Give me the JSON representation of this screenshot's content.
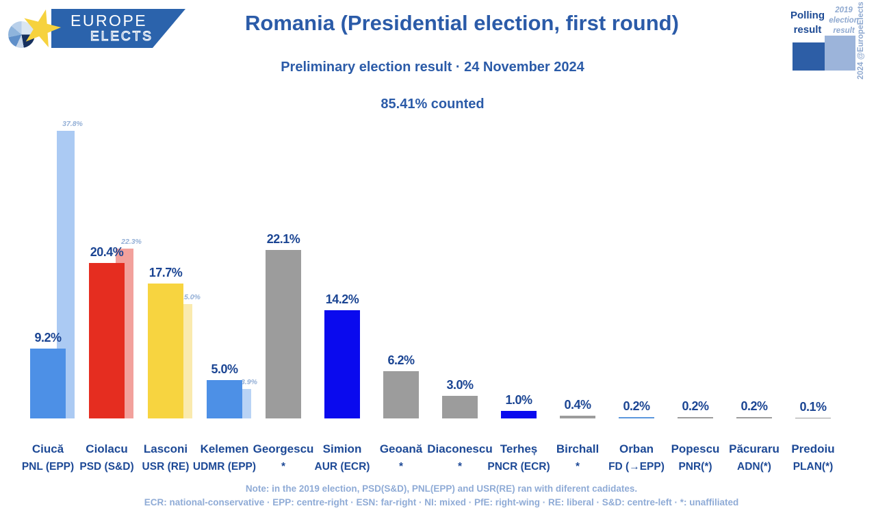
{
  "header": {
    "logo_line1": "EUROPE",
    "logo_line2": "ELECTS",
    "title": "Romania (Presidential election, first round)",
    "subtitle": "Preliminary election result · 24 November 2024",
    "counted": "85.41% counted"
  },
  "legend": {
    "polling_label": "Polling result",
    "previous_label": "2019 election result",
    "polling_color": "#2d5ea6",
    "previous_color": "#9cb4da"
  },
  "credit": "2024 @EuropeElects",
  "footer": {
    "note": "Note: in the 2019 election, PSD(S&D), PNL(EPP) and USR(RE) ran with diferent cadidates.",
    "abbreviations": "ECR: national-conservative · EPP: centre-right · ESN: far-right · NI: mixed · PfE: right-wing · RE: liberal · S&D: centre-left · *: unaffiliated"
  },
  "chart_data": {
    "type": "bar",
    "title": "Romania (Presidential election, first round)",
    "subtitle": "Preliminary election result · 24 November 2024",
    "annotation": "85.41% counted",
    "unit": "%",
    "grid": false,
    "legend_position": "top-right",
    "series": [
      {
        "name": "Polling result"
      },
      {
        "name": "2019 election result"
      }
    ],
    "candidates": [
      {
        "name": "Ciucă",
        "party": "PNL (EPP)",
        "value": 9.2,
        "label": "9.2%",
        "color": "#4d90e6",
        "prev_value": 37.8,
        "prev_label": "37.8%",
        "prev_color": "#abcaf3"
      },
      {
        "name": "Ciolacu",
        "party": "PSD (S&D)",
        "value": 20.4,
        "label": "20.4%",
        "color": "#e52d20",
        "prev_value": 22.3,
        "prev_label": "22.3%",
        "prev_color": "#f2a19c"
      },
      {
        "name": "Lasconi",
        "party": "USR (RE)",
        "value": 17.7,
        "label": "17.7%",
        "color": "#f7d440",
        "prev_value": 15.0,
        "prev_label": "15.0%",
        "prev_color": "#faeaae"
      },
      {
        "name": "Kelemen",
        "party": "UDMR (EPP)",
        "value": 5.0,
        "label": "5.0%",
        "color": "#4d90e6",
        "prev_value": 3.9,
        "prev_label": "3.9%",
        "prev_color": "#b9d3f5"
      },
      {
        "name": "Georgescu",
        "party": "*",
        "value": 22.1,
        "label": "22.1%",
        "color": "#9c9c9c"
      },
      {
        "name": "Simion",
        "party": "AUR (ECR)",
        "value": 14.2,
        "label": "14.2%",
        "color": "#0a0aee"
      },
      {
        "name": "Geoană",
        "party": "*",
        "value": 6.2,
        "label": "6.2%",
        "color": "#9c9c9c"
      },
      {
        "name": "Diaconescu",
        "party": "*",
        "value": 3.0,
        "label": "3.0%",
        "color": "#9c9c9c"
      },
      {
        "name": "Terheș",
        "party": "PNCR (ECR)",
        "value": 1.0,
        "label": "1.0%",
        "color": "#0a0aee"
      },
      {
        "name": "Birchall",
        "party": "*",
        "value": 0.4,
        "label": "0.4%",
        "color": "#9c9c9c"
      },
      {
        "name": "Orban",
        "party": "FD (→EPP)",
        "value": 0.2,
        "label": "0.2%",
        "color": "#5b97dd"
      },
      {
        "name": "Popescu",
        "party": "PNR(*)",
        "value": 0.2,
        "label": "0.2%",
        "color": "#9c9c9c"
      },
      {
        "name": "Păcuraru",
        "party": "ADN(*)",
        "value": 0.2,
        "label": "0.2%",
        "color": "#9c9c9c"
      },
      {
        "name": "Predoiu",
        "party": "PLAN(*)",
        "value": 0.1,
        "label": "0.1%",
        "color": "#9c9c9c"
      }
    ]
  }
}
